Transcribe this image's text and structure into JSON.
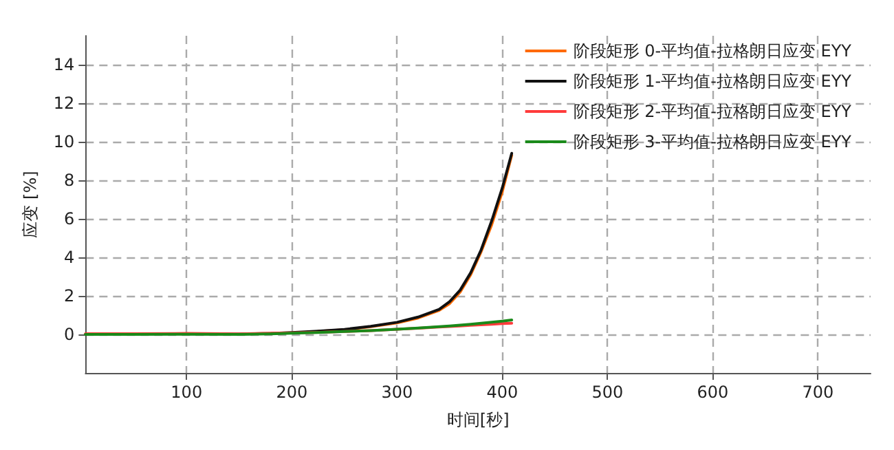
{
  "chart_data": {
    "type": "line",
    "xlabel": "时间[秒]",
    "ylabel": "应变 [%]",
    "xlim": [
      4,
      750
    ],
    "ylim": [
      -2,
      15.5
    ],
    "xticks": [
      100,
      200,
      300,
      400,
      500,
      600,
      700
    ],
    "yticks": [
      0,
      2,
      4,
      6,
      8,
      10,
      12,
      14
    ],
    "grid": true,
    "legend": "top right",
    "line_style": "solid",
    "marker": "none",
    "x": [
      4,
      50,
      100,
      150,
      180,
      200,
      225,
      250,
      275,
      300,
      320,
      340,
      350,
      360,
      370,
      380,
      390,
      400,
      409
    ],
    "series": [
      {
        "name": "阶段矩形 0-平均值-拉格朗日应变 EYY",
        "color": "#ff6a00",
        "values": [
          null,
          null,
          null,
          null,
          null,
          null,
          0.16,
          0.24,
          0.4,
          0.6,
          0.85,
          1.25,
          1.6,
          2.2,
          3.1,
          4.3,
          5.7,
          7.4,
          9.3
        ]
      },
      {
        "name": "阶段矩形 1-平均值-拉格朗日应变 EYY",
        "color": "#111111",
        "values": [
          0.02,
          0.03,
          0.03,
          0.02,
          0.05,
          0.1,
          0.17,
          0.26,
          0.42,
          0.63,
          0.9,
          1.3,
          1.7,
          2.3,
          3.2,
          4.4,
          5.9,
          7.6,
          9.4
        ]
      },
      {
        "name": "阶段矩形 2-平均值-拉格朗日应变 EYY",
        "color": "#ff3b3b",
        "values": [
          0.04,
          0.04,
          0.05,
          0.03,
          0.06,
          0.08,
          0.11,
          0.15,
          0.2,
          0.27,
          0.32,
          0.38,
          0.41,
          0.44,
          0.47,
          0.5,
          0.53,
          0.56,
          0.58
        ]
      },
      {
        "name": "阶段矩形 3-平均值-拉格朗日应变 EYY",
        "color": "#1a8a1a",
        "values": [
          0.0,
          0.0,
          0.01,
          0.0,
          0.03,
          0.06,
          0.1,
          0.15,
          0.2,
          0.27,
          0.33,
          0.4,
          0.44,
          0.48,
          0.53,
          0.58,
          0.63,
          0.69,
          0.75
        ]
      }
    ]
  }
}
